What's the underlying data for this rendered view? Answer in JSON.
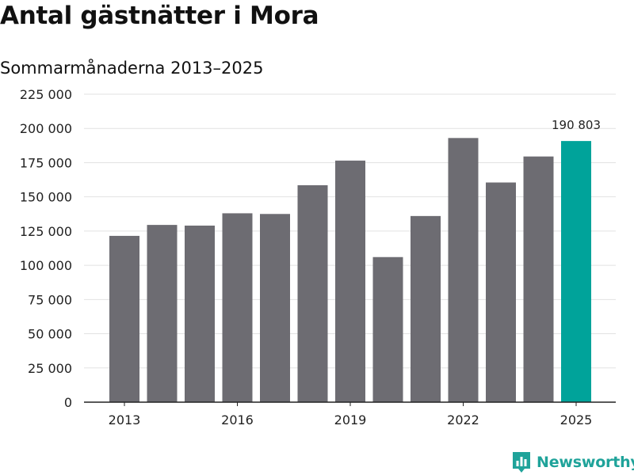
{
  "title": "Antal gästnätter i Mora",
  "subtitle": "Sommarmånaderna 2013–2025",
  "brand": "Newsworthy",
  "colors": {
    "bar": "#6d6c72",
    "highlight": "#00a39a",
    "grid": "#e2e2e2",
    "axis": "#222222",
    "brand": "#1fa39a"
  },
  "chart_data": {
    "type": "bar",
    "title": "Antal gästnätter i Mora",
    "subtitle": "Sommarmånaderna 2013–2025",
    "categories": [
      "2013",
      "2014",
      "2015",
      "2016",
      "2017",
      "2018",
      "2019",
      "2020",
      "2021",
      "2022",
      "2023",
      "2024",
      "2025"
    ],
    "values": [
      121500,
      129500,
      129000,
      138000,
      137500,
      158500,
      176500,
      106000,
      136000,
      193000,
      160500,
      179500,
      190803
    ],
    "ylim": [
      0,
      225000
    ],
    "yticks": [
      0,
      25000,
      50000,
      75000,
      100000,
      125000,
      150000,
      175000,
      200000,
      225000
    ],
    "ytick_labels": [
      "0",
      "25 000",
      "50 000",
      "75 000",
      "100 000",
      "125 000",
      "150 000",
      "175 000",
      "200 000",
      "225 000"
    ],
    "xtick_labels": [
      "2013",
      "",
      "",
      "2016",
      "",
      "",
      "2019",
      "",
      "",
      "2022",
      "",
      "",
      "2025"
    ],
    "data_labels": [
      {
        "category": "2025",
        "text": "190 803"
      }
    ],
    "highlight_category": "2025",
    "grid": true,
    "xlabel": "",
    "ylabel": ""
  }
}
